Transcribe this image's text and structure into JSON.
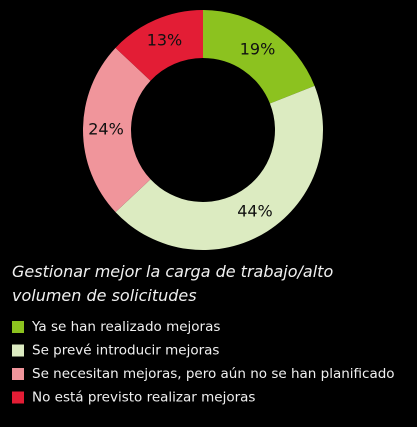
{
  "chart_data": {
    "type": "donut",
    "title": "Gestionar mejor la carga de trabajo/alto volumen de solicitudes",
    "categories": [
      "Ya se han realizado mejoras",
      "Se prevé introducir mejoras",
      "Se necesitan mejoras, pero aún no se han planificado",
      "No está previsto realizar mejoras"
    ],
    "values": [
      19,
      44,
      24,
      13
    ],
    "value_labels": [
      "19%",
      "44%",
      "24%",
      "13%"
    ],
    "colors": [
      "#8cc21f",
      "#dcebc1",
      "#f0959b",
      "#e31d35"
    ]
  }
}
